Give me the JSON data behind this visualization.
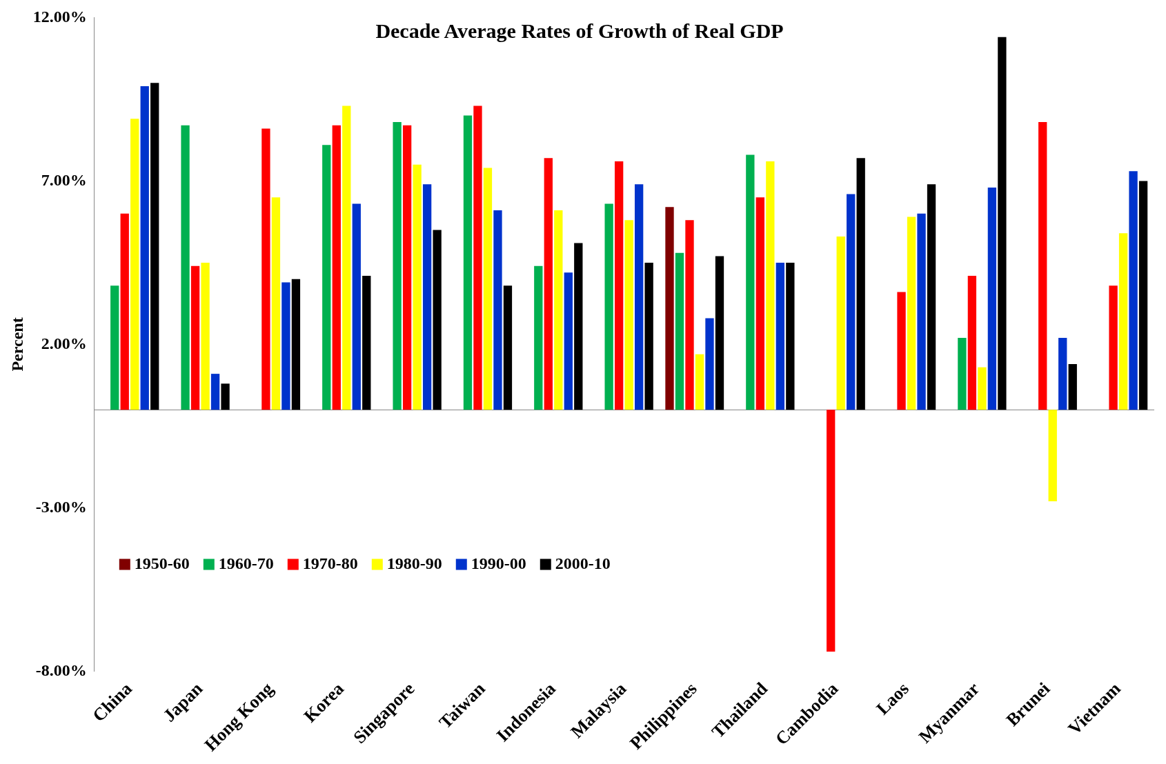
{
  "chart_data": {
    "type": "bar",
    "title": "Decade Average Rates of Growth of Real GDP",
    "ylabel": "Percent",
    "categories": [
      "China",
      "Japan",
      "Hong Kong",
      "Korea",
      "Singapore",
      "Taiwan",
      "Indonesia",
      "Malaysia",
      "Philippines",
      "Thailand",
      "Cambodia",
      "Laos",
      "Myanmar",
      "Brunei",
      "Vietnam"
    ],
    "series": [
      {
        "name": "1950-60",
        "color": "#800000",
        "values": [
          null,
          null,
          null,
          null,
          null,
          null,
          null,
          null,
          6.2,
          null,
          null,
          null,
          null,
          null,
          null
        ]
      },
      {
        "name": "1960-70",
        "color": "#00b050",
        "values": [
          3.8,
          8.7,
          null,
          8.1,
          8.8,
          9.0,
          4.4,
          6.3,
          4.8,
          7.8,
          null,
          null,
          2.2,
          null,
          null
        ]
      },
      {
        "name": "1970-80",
        "color": "#ff0000",
        "values": [
          6.0,
          4.4,
          8.6,
          8.7,
          8.7,
          9.3,
          7.7,
          7.6,
          5.8,
          6.5,
          -7.4,
          3.6,
          4.1,
          8.8,
          3.8
        ]
      },
      {
        "name": "1980-90",
        "color": "#ffff00",
        "values": [
          8.9,
          4.5,
          6.5,
          9.3,
          7.5,
          7.4,
          6.1,
          5.8,
          1.7,
          7.6,
          5.3,
          5.9,
          1.3,
          -2.8,
          5.4
        ]
      },
      {
        "name": "1990-00",
        "color": "#0033cc",
        "values": [
          9.9,
          1.1,
          3.9,
          6.3,
          6.9,
          6.1,
          4.2,
          6.9,
          2.8,
          4.5,
          6.6,
          6.0,
          6.8,
          2.2,
          7.3
        ]
      },
      {
        "name": "2000-10",
        "color": "#000000",
        "values": [
          10.0,
          0.8,
          4.0,
          4.1,
          5.5,
          3.8,
          5.1,
          4.5,
          4.7,
          4.5,
          7.7,
          6.9,
          11.4,
          1.4,
          7.0
        ]
      }
    ],
    "ylim": [
      -8,
      12
    ],
    "yticks": [
      {
        "value": -8,
        "label": "-8.00%"
      },
      {
        "value": -3,
        "label": "-3.00%"
      },
      {
        "value": 2,
        "label": "2.00%"
      },
      {
        "value": 7,
        "label": "7.00%"
      },
      {
        "value": 12,
        "label": "12.00%"
      }
    ],
    "grid": false,
    "legend": "bottom left"
  }
}
